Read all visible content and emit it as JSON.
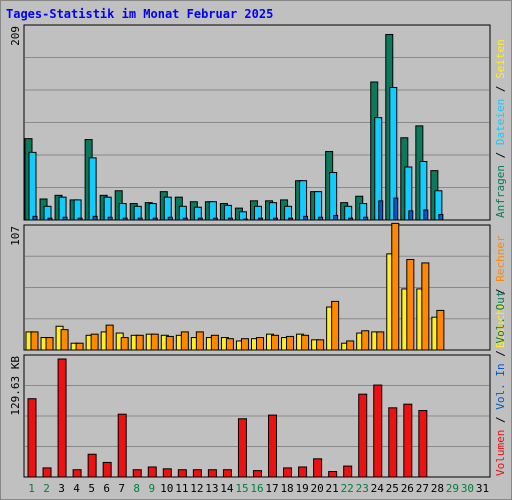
{
  "title": "Tages-Statistik im Monat Februar 2025",
  "colors": {
    "anfragen": "#0a7a5c",
    "dateien": "#11ccff",
    "seiten": "#005cc8",
    "besuche": "#ffee22",
    "rechner": "#ff8800",
    "volumen": "#ee1111",
    "weekday_label": "#000000",
    "weekend_label": "#008040",
    "grid": "#8a8a8a",
    "panel_bg": "#c0c0c0"
  },
  "chart_data": [
    {
      "type": "bar",
      "panel": "top",
      "ymax_label": "209",
      "ylim": [
        0,
        209
      ],
      "grid": true,
      "categories": [
        "1",
        "2",
        "3",
        "4",
        "5",
        "6",
        "7",
        "8",
        "9",
        "10",
        "11",
        "12",
        "13",
        "14",
        "15",
        "16",
        "17",
        "18",
        "19",
        "20",
        "21",
        "22",
        "23",
        "24",
        "25",
        "26",
        "27",
        "28",
        "29",
        "30",
        "31"
      ],
      "series": [
        {
          "name": "Anfragen",
          "values": [
            89,
            23,
            27,
            22,
            88,
            27,
            32,
            18,
            19,
            31,
            25,
            20,
            20,
            18,
            13,
            21,
            21,
            22,
            43,
            31,
            75,
            19,
            26,
            151,
            203,
            90,
            103,
            54,
            0,
            0,
            0
          ]
        },
        {
          "name": "Dateien",
          "values": [
            74,
            15,
            25,
            22,
            68,
            25,
            18,
            15,
            18,
            25,
            15,
            14,
            20,
            16,
            9,
            15,
            19,
            15,
            43,
            31,
            52,
            15,
            18,
            112,
            145,
            58,
            64,
            32,
            0,
            0,
            0
          ]
        },
        {
          "name": "Seiten",
          "values": [
            4,
            2,
            3,
            2,
            4,
            3,
            2,
            2,
            2,
            3,
            2,
            2,
            2,
            2,
            1,
            2,
            2,
            2,
            4,
            3,
            5,
            2,
            3,
            21,
            24,
            10,
            11,
            6,
            0,
            0,
            0
          ]
        }
      ],
      "legend": [
        "Anfragen",
        "Dateien",
        "Seiten"
      ]
    },
    {
      "type": "bar",
      "panel": "middle",
      "ymax_label": "107",
      "ylim": [
        0,
        107
      ],
      "grid": true,
      "categories": [
        "1",
        "2",
        "3",
        "4",
        "5",
        "6",
        "7",
        "8",
        "9",
        "10",
        "11",
        "12",
        "13",
        "14",
        "15",
        "16",
        "17",
        "18",
        "19",
        "20",
        "21",
        "22",
        "23",
        "24",
        "25",
        "26",
        "27",
        "28",
        "29",
        "30",
        "31"
      ],
      "series": [
        {
          "name": "Besuche",
          "values": [
            16,
            11,
            21,
            6,
            13,
            16,
            15,
            13,
            14,
            13,
            13,
            11,
            11,
            11,
            8,
            10,
            14,
            11,
            14,
            9,
            38,
            6,
            15,
            16,
            85,
            54,
            54,
            29,
            0,
            0,
            0
          ]
        },
        {
          "name": "Rechner",
          "values": [
            16,
            11,
            18,
            6,
            14,
            22,
            11,
            13,
            14,
            12,
            16,
            16,
            13,
            10,
            10,
            11,
            13,
            12,
            13,
            9,
            43,
            8,
            17,
            16,
            112,
            80,
            77,
            35,
            0,
            0,
            0
          ]
        }
      ],
      "legend": [
        "Besuche",
        "Rechner"
      ]
    },
    {
      "type": "bar",
      "panel": "bottom",
      "ymax_label": "129.63 KB",
      "ylim": [
        0,
        129.63
      ],
      "grid": true,
      "categories": [
        "1",
        "2",
        "3",
        "4",
        "5",
        "6",
        "7",
        "8",
        "9",
        "10",
        "11",
        "12",
        "13",
        "14",
        "15",
        "16",
        "17",
        "18",
        "19",
        "20",
        "21",
        "22",
        "23",
        "24",
        "25",
        "26",
        "27",
        "28",
        "29",
        "30",
        "31"
      ],
      "series": [
        {
          "name": "Volumen",
          "values": [
            86,
            10,
            129.63,
            8,
            25,
            16,
            69,
            8,
            11,
            9,
            8,
            8,
            8,
            8,
            64,
            7,
            68,
            10,
            11,
            20,
            6,
            12,
            91,
            101,
            76,
            80,
            73,
            0,
            0,
            0,
            0
          ]
        }
      ],
      "legend": [
        "Volumen"
      ]
    }
  ],
  "right_labels": {
    "top": [
      "Anfragen",
      "Dateien",
      "Seiten"
    ],
    "middle": [
      "Besuche",
      "Rechner"
    ],
    "bottom": [
      "Volumen",
      "Vol. In",
      "Vol. Out"
    ]
  },
  "weekend_days": [
    "1",
    "2",
    "8",
    "9",
    "15",
    "16",
    "22",
    "23",
    "29",
    "30"
  ]
}
